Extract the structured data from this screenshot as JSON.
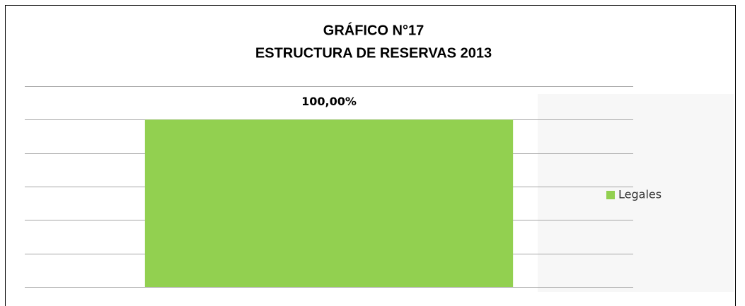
{
  "chart_data": {
    "type": "bar",
    "title": "GRÁFICO N°17",
    "subtitle": "ESTRUCTURA DE RESERVAS 2013",
    "categories": [
      null
    ],
    "series": [
      {
        "name": "Legales",
        "color": "#92d050",
        "values": [
          100
        ],
        "value_labels": [
          "100,00%"
        ]
      }
    ],
    "ylim": [
      0,
      120
    ],
    "yticks": [
      0,
      20,
      40,
      60,
      80,
      100,
      120
    ],
    "grid": true,
    "legend": "right"
  }
}
